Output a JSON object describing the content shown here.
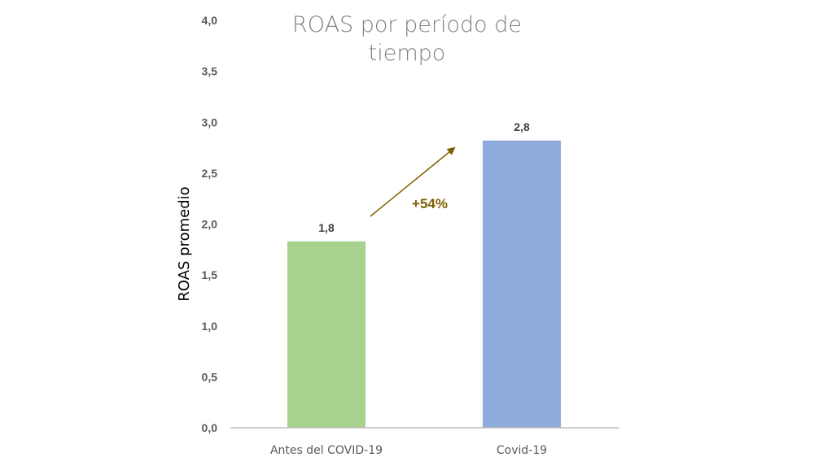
{
  "chart_data": {
    "type": "bar",
    "title_lines": [
      "ROAS por período de",
      "tiempo"
    ],
    "ylabel": "ROAS promedio",
    "xlabel": "",
    "categories": [
      "Antes del COVID-19",
      "Covid-19"
    ],
    "values": [
      1.83,
      2.82
    ],
    "data_labels": [
      "1,8",
      "2,8"
    ],
    "bar_colors": [
      "#a9d18e",
      "#8faadc"
    ],
    "ylim": [
      0,
      4
    ],
    "yticks": [
      "0,0",
      "0,5",
      "1,0",
      "1,5",
      "2,0",
      "2,5",
      "3,0",
      "3,5",
      "4,0"
    ],
    "grid": false,
    "legend": "none",
    "annotation": {
      "text": "+54%",
      "color": "#7f6000",
      "from_category": "Antes del COVID-19",
      "to_category": "Covid-19"
    }
  }
}
